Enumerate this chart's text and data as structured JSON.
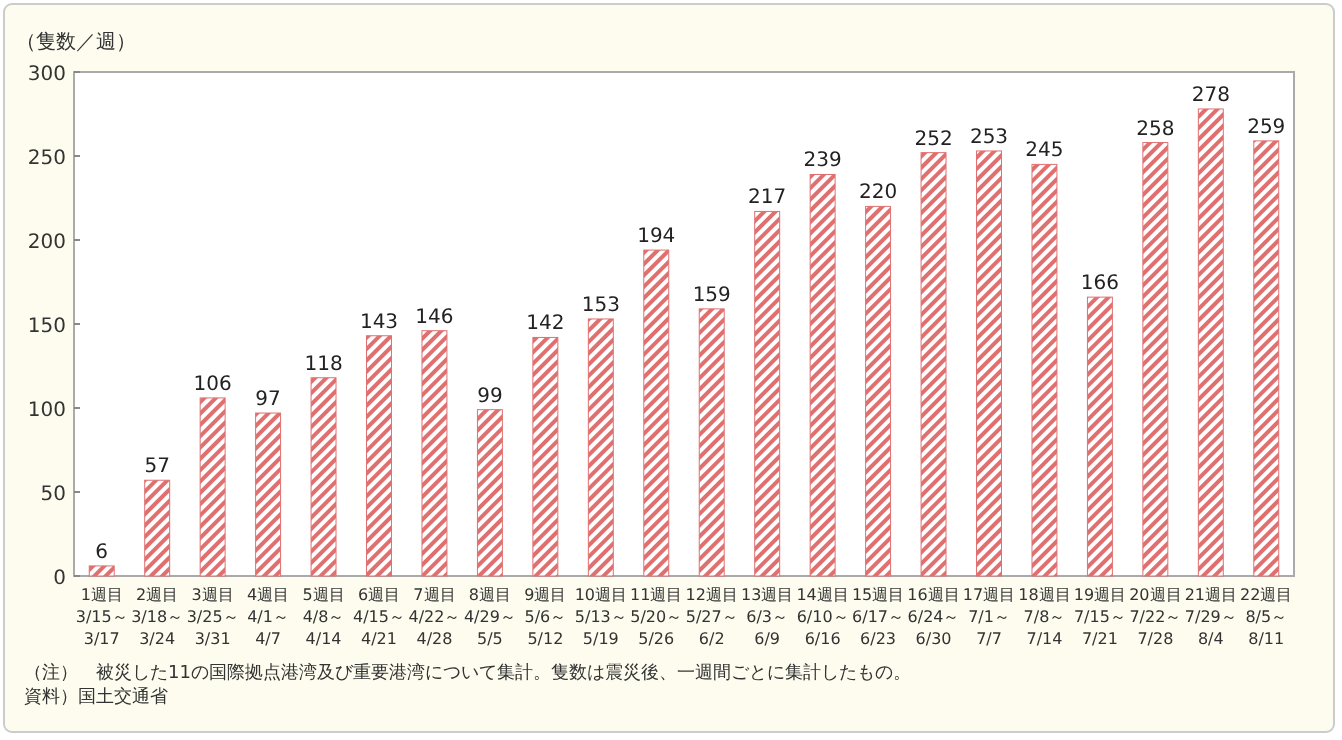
{
  "chart_data": {
    "type": "bar",
    "ylabel": "（隻数／週）",
    "categories": [
      "1週目\n3/15～\n3/17",
      "2週目\n3/18～\n3/24",
      "3週目\n3/25～\n3/31",
      "4週目\n4/1～\n4/7",
      "5週目\n4/8～\n4/14",
      "6週目\n4/15～\n4/21",
      "7週目\n4/22～\n4/28",
      "8週目\n4/29～\n5/5",
      "9週目\n5/6～\n5/12",
      "10週目\n5/13～\n5/19",
      "11週目\n5/20～\n5/26",
      "12週目\n5/27～\n6/2",
      "13週目\n6/3～\n6/9",
      "14週目\n6/10～\n6/16",
      "15週目\n6/17～\n6/23",
      "16週目\n6/24～\n6/30",
      "17週目\n7/1～\n7/7",
      "18週目\n7/8～\n7/14",
      "19週目\n7/15～\n7/21",
      "20週目\n7/22～\n7/28",
      "21週目\n7/29～\n8/4",
      "22週目\n8/5～\n8/11"
    ],
    "values": [
      6,
      57,
      106,
      97,
      118,
      143,
      146,
      99,
      142,
      153,
      194,
      159,
      217,
      239,
      220,
      252,
      253,
      245,
      166,
      258,
      278,
      259
    ],
    "color": "#e07070",
    "data_labels": true,
    "ylim": [
      0,
      300
    ],
    "yticks": [
      0,
      50,
      100,
      150,
      200,
      250,
      300
    ],
    "annotations": [
      "（注）　被災した11の国際拠点港湾及び重要港湾について集計。隻数は震災後、一週間ごとに集計したもの。",
      "資料）国土交通省"
    ]
  }
}
